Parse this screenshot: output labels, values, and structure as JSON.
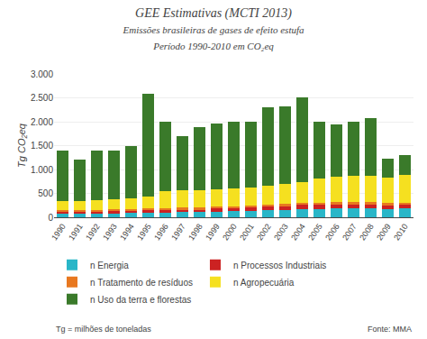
{
  "chart_data": {
    "type": "bar",
    "stacked": true,
    "title": "GEE Estimativas (MCTI 2013)",
    "subtitle": [
      "Emissões brasileiras de gases de efeito estufa",
      "Período 1990-2010 em CO₂eq"
    ],
    "ylabel": "Tg CO₂eq",
    "categories": [
      "1990",
      "1991",
      "1992",
      "1993",
      "1994",
      "1995",
      "1996",
      "1997",
      "1998",
      "1999",
      "2000",
      "2001",
      "2002",
      "2003",
      "2004",
      "2005",
      "2006",
      "2007",
      "2008",
      "2009",
      "2010"
    ],
    "series": [
      {
        "name": "n Energia",
        "color": "#29b6c8",
        "values": [
          70,
          75,
          80,
          85,
          90,
          95,
          100,
          105,
          110,
          120,
          130,
          140,
          150,
          160,
          170,
          175,
          180,
          185,
          190,
          175,
          185
        ]
      },
      {
        "name": "n Processos Industriais",
        "color": "#cc2222",
        "values": [
          50,
          45,
          50,
          55,
          55,
          60,
          60,
          60,
          55,
          60,
          65,
          70,
          75,
          75,
          85,
          80,
          80,
          75,
          75,
          65,
          70
        ]
      },
      {
        "name": "n Tratamento de resíduos",
        "color": "#e87820",
        "values": [
          25,
          25,
          28,
          30,
          30,
          35,
          35,
          35,
          35,
          38,
          40,
          42,
          45,
          48,
          50,
          52,
          52,
          53,
          54,
          54,
          55
        ]
      },
      {
        "name": "n Agropecuária",
        "color": "#f5e020",
        "values": [
          195,
          195,
          205,
          215,
          220,
          235,
          355,
          370,
          375,
          365,
          375,
          375,
          395,
          415,
          435,
          505,
          545,
          550,
          555,
          545,
          575
        ]
      },
      {
        "name": "n Uso da terra e florestas",
        "color": "#3a7a2a",
        "values": [
          1055,
          865,
          1030,
          1005,
          1095,
          2165,
          1445,
          1125,
          1315,
          1385,
          1395,
          1365,
          1645,
          1625,
          1765,
          1185,
          1085,
          1135,
          1205,
          390,
          420
        ]
      }
    ],
    "ylim": [
      0,
      3000
    ],
    "yticks": [
      0,
      500,
      {
        "value": 1000,
        "label": "1.000"
      },
      {
        "value": 1500,
        "label": "1.500"
      },
      {
        "value": 2000,
        "label": "2.000"
      },
      {
        "value": 2500,
        "label": "2.500"
      },
      {
        "value": 3000,
        "label": "3.000"
      }
    ],
    "grid": true,
    "annotations": [
      "Tg = milhões de toneladas",
      "Fonte: MMA"
    ]
  }
}
